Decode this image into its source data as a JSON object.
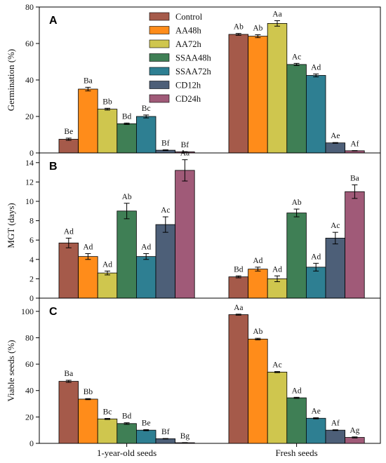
{
  "chart_data": {
    "type": "bar",
    "categories": [
      "1-year-old seeds",
      "Fresh seeds"
    ],
    "legend": [
      "Control",
      "AA48h",
      "AA72h",
      "SSAA48h",
      "SSAA72h",
      "CD12h",
      "CD24h"
    ],
    "colors": [
      "#a55a4a",
      "#ff8c1a",
      "#cfc64e",
      "#3f7f55",
      "#2e7f92",
      "#4d5f78",
      "#a05a78"
    ],
    "legend_position": "top-center",
    "panels": [
      {
        "letter": "A",
        "ylabel": "Germination (%)",
        "ylim": [
          0,
          80
        ],
        "yticks": [
          0,
          20,
          40,
          60,
          80
        ],
        "series": [
          {
            "name": "Control",
            "values": [
              7.5,
              65.0
            ],
            "errors": [
              0.6,
              0.5
            ],
            "labels": [
              "Be",
              "Ab"
            ]
          },
          {
            "name": "AA48h",
            "values": [
              35.0,
              64.0
            ],
            "errors": [
              1.0,
              0.8
            ],
            "labels": [
              "Ba",
              "Ab"
            ]
          },
          {
            "name": "AA72h",
            "values": [
              24.0,
              71.0
            ],
            "errors": [
              0.5,
              1.5
            ],
            "labels": [
              "Bb",
              "Aa"
            ]
          },
          {
            "name": "SSAA48h",
            "values": [
              16.0,
              48.5
            ],
            "errors": [
              0.4,
              0.6
            ],
            "labels": [
              "Bd",
              "Ac"
            ]
          },
          {
            "name": "SSAA72h",
            "values": [
              20.0,
              42.5
            ],
            "errors": [
              0.8,
              0.8
            ],
            "labels": [
              "Bc",
              "Ad"
            ]
          },
          {
            "name": "CD12h",
            "values": [
              1.5,
              5.5
            ],
            "errors": [
              0.2,
              0.2
            ],
            "labels": [
              "Bf",
              "Ae"
            ]
          },
          {
            "name": "CD24h",
            "values": [
              0.6,
              1.2
            ],
            "errors": [
              0.1,
              0.1
            ],
            "labels": [
              "Bf",
              "Af"
            ]
          }
        ]
      },
      {
        "letter": "B",
        "ylabel": "MGT (days)",
        "ylim": [
          0,
          15
        ],
        "yticks": [
          0,
          2,
          4,
          6,
          8,
          10,
          12,
          14
        ],
        "series": [
          {
            "name": "Control",
            "values": [
              5.7,
              2.2
            ],
            "errors": [
              0.5,
              0.1
            ],
            "labels": [
              "Ad",
              "Bd"
            ]
          },
          {
            "name": "AA48h",
            "values": [
              4.3,
              3.0
            ],
            "errors": [
              0.3,
              0.2
            ],
            "labels": [
              "Ad",
              "Ad"
            ]
          },
          {
            "name": "AA72h",
            "values": [
              2.6,
              2.0
            ],
            "errors": [
              0.2,
              0.3
            ],
            "labels": [
              "Ad",
              "Ad"
            ]
          },
          {
            "name": "SSAA48h",
            "values": [
              9.0,
              8.8
            ],
            "errors": [
              0.8,
              0.4
            ],
            "labels": [
              "Ab",
              "Ab"
            ]
          },
          {
            "name": "SSAA72h",
            "values": [
              4.3,
              3.2
            ],
            "errors": [
              0.3,
              0.4
            ],
            "labels": [
              "Ad",
              "Ad"
            ]
          },
          {
            "name": "CD12h",
            "values": [
              7.6,
              6.2
            ],
            "errors": [
              0.8,
              0.6
            ],
            "labels": [
              "Ac",
              "Ac"
            ]
          },
          {
            "name": "CD24h",
            "values": [
              13.2,
              11.0
            ],
            "errors": [
              1.1,
              0.7
            ],
            "labels": [
              "Aa",
              "Ba"
            ]
          }
        ]
      },
      {
        "letter": "C",
        "ylabel": "Viable seeds (%)",
        "ylim": [
          0,
          110
        ],
        "yticks": [
          0,
          20,
          40,
          60,
          80,
          100
        ],
        "series": [
          {
            "name": "Control",
            "values": [
              47.0,
              97.5
            ],
            "errors": [
              0.8,
              0.4
            ],
            "labels": [
              "Ba",
              "Aa"
            ]
          },
          {
            "name": "AA48h",
            "values": [
              33.5,
              79.0
            ],
            "errors": [
              0.4,
              0.6
            ],
            "labels": [
              "Bb",
              "Ab"
            ]
          },
          {
            "name": "AA72h",
            "values": [
              18.5,
              54.0
            ],
            "errors": [
              0.4,
              0.4
            ],
            "labels": [
              "Bc",
              "Ac"
            ]
          },
          {
            "name": "SSAA48h",
            "values": [
              15.0,
              34.5
            ],
            "errors": [
              0.6,
              0.4
            ],
            "labels": [
              "Bd",
              "Ad"
            ]
          },
          {
            "name": "SSAA72h",
            "values": [
              10.0,
              19.0
            ],
            "errors": [
              0.4,
              0.4
            ],
            "labels": [
              "Be",
              "Ae"
            ]
          },
          {
            "name": "CD12h",
            "values": [
              3.5,
              10.0
            ],
            "errors": [
              0.2,
              0.3
            ],
            "labels": [
              "Bf",
              "Af"
            ]
          },
          {
            "name": "CD24h",
            "values": [
              0.5,
              4.5
            ],
            "errors": [
              0.1,
              0.4
            ],
            "labels": [
              "Bg",
              "Ag"
            ]
          }
        ]
      }
    ]
  }
}
